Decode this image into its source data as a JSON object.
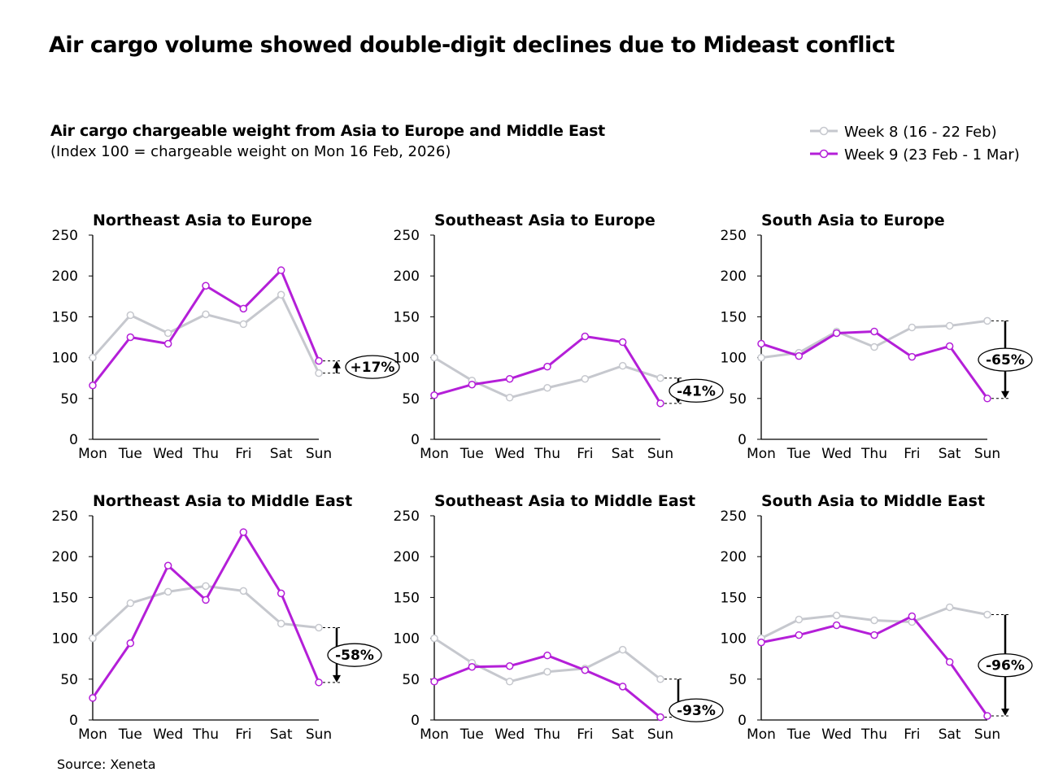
{
  "title": "Air cargo volume showed double-digit declines due to Mideast conflict",
  "subtitle": "Air cargo chargeable weight from Asia to Europe and Middle East",
  "note": "(Index 100 = chargeable weight on Mon 16 Feb, 2026)",
  "source": "Source: Xeneta",
  "colors": {
    "week8": "#c6c8ce",
    "week9": "#b41fd8"
  },
  "legend": [
    {
      "name": "Week 8 (16 - 22 Feb)",
      "color": "#c6c8ce"
    },
    {
      "name": "Week 9 (23 Feb - 1 Mar)",
      "color": "#b41fd8"
    }
  ],
  "chart_data": [
    {
      "type": "line",
      "title": "Northeast Asia to Europe",
      "categories": [
        "Mon",
        "Tue",
        "Wed",
        "Thu",
        "Fri",
        "Sat",
        "Sun"
      ],
      "ylim": [
        0,
        250
      ],
      "yticks": [
        0,
        50,
        100,
        150,
        200,
        250
      ],
      "annotation": "+17%",
      "series": [
        {
          "name": "Week 8 (16 - 22 Feb)",
          "values": [
            100,
            152,
            130,
            153,
            141,
            177,
            81
          ]
        },
        {
          "name": "Week 9 (23 Feb - 1 Mar)",
          "values": [
            66,
            125,
            117,
            188,
            160,
            207,
            96
          ]
        }
      ]
    },
    {
      "type": "line",
      "title": "Southeast Asia to Europe",
      "categories": [
        "Mon",
        "Tue",
        "Wed",
        "Thu",
        "Fri",
        "Sat",
        "Sun"
      ],
      "ylim": [
        0,
        250
      ],
      "yticks": [
        0,
        50,
        100,
        150,
        200,
        250
      ],
      "annotation": "-41%",
      "series": [
        {
          "name": "Week 8 (16 - 22 Feb)",
          "values": [
            100,
            72,
            51,
            63,
            74,
            90,
            75
          ]
        },
        {
          "name": "Week 9 (23 Feb - 1 Mar)",
          "values": [
            54,
            67,
            74,
            89,
            126,
            119,
            44
          ]
        }
      ]
    },
    {
      "type": "line",
      "title": "South Asia to Europe",
      "categories": [
        "Mon",
        "Tue",
        "Wed",
        "Thu",
        "Fri",
        "Sat",
        "Sun"
      ],
      "ylim": [
        0,
        250
      ],
      "yticks": [
        0,
        50,
        100,
        150,
        200,
        250
      ],
      "annotation": "-65%",
      "series": [
        {
          "name": "Week 8 (16 - 22 Feb)",
          "values": [
            100,
            106,
            132,
            113,
            137,
            139,
            145
          ]
        },
        {
          "name": "Week 9 (23 Feb - 1 Mar)",
          "values": [
            117,
            102,
            130,
            132,
            101,
            114,
            50
          ]
        }
      ]
    },
    {
      "type": "line",
      "title": "Northeast Asia to Middle East",
      "categories": [
        "Mon",
        "Tue",
        "Wed",
        "Thu",
        "Fri",
        "Sat",
        "Sun"
      ],
      "ylim": [
        0,
        250
      ],
      "yticks": [
        0,
        50,
        100,
        150,
        200,
        250
      ],
      "annotation": "-58%",
      "series": [
        {
          "name": "Week 8 (16 - 22 Feb)",
          "values": [
            100,
            143,
            157,
            164,
            158,
            118,
            113
          ]
        },
        {
          "name": "Week 9 (23 Feb - 1 Mar)",
          "values": [
            27,
            94,
            189,
            147,
            230,
            155,
            46
          ]
        }
      ]
    },
    {
      "type": "line",
      "title": "Southeast Asia to Middle East",
      "categories": [
        "Mon",
        "Tue",
        "Wed",
        "Thu",
        "Fri",
        "Sat",
        "Sun"
      ],
      "ylim": [
        0,
        250
      ],
      "yticks": [
        0,
        50,
        100,
        150,
        200,
        250
      ],
      "annotation": "-93%",
      "series": [
        {
          "name": "Week 8 (16 - 22 Feb)",
          "values": [
            100,
            70,
            47,
            59,
            63,
            86,
            50
          ]
        },
        {
          "name": "Week 9 (23 Feb - 1 Mar)",
          "values": [
            47,
            65,
            66,
            79,
            61,
            41,
            3.5
          ]
        }
      ]
    },
    {
      "type": "line",
      "title": "South Asia to Middle East",
      "categories": [
        "Mon",
        "Tue",
        "Wed",
        "Thu",
        "Fri",
        "Sat",
        "Sun"
      ],
      "ylim": [
        0,
        250
      ],
      "yticks": [
        0,
        50,
        100,
        150,
        200,
        250
      ],
      "annotation": "-96%",
      "series": [
        {
          "name": "Week 8 (16 - 22 Feb)",
          "values": [
            100,
            123,
            128,
            122,
            120,
            138,
            129
          ]
        },
        {
          "name": "Week 9 (23 Feb - 1 Mar)",
          "values": [
            95,
            104,
            116,
            104,
            127,
            71,
            5
          ]
        }
      ]
    }
  ]
}
